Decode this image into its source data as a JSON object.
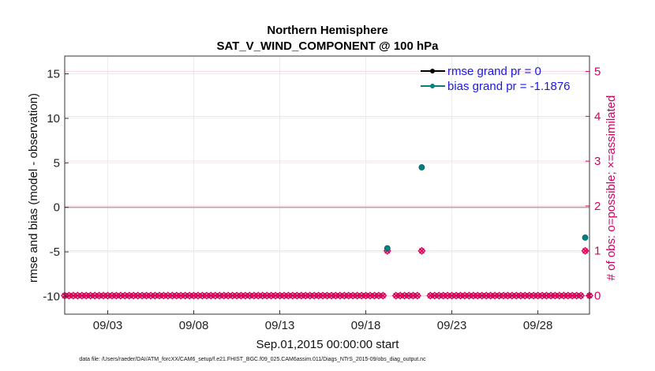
{
  "chart_data": {
    "type": "scatter",
    "title": "Northern Hemisphere",
    "subtitle": "SAT_V_WIND_COMPONENT @ 100 hPa",
    "xlabel": "Sep.01,2015 00:00:00 start",
    "ylabel": "rmse and bias (model - observation)",
    "y2label": "# of obs: o=possible; ×=assimilated",
    "xlim": [
      0.5,
      31
    ],
    "ylim": [
      -12,
      17
    ],
    "y2lim": [
      -0.4138,
      5.3448
    ],
    "x_ticks": [
      {
        "value": 3,
        "label": "09/03"
      },
      {
        "value": 8,
        "label": "09/08"
      },
      {
        "value": 13,
        "label": "09/13"
      },
      {
        "value": 18,
        "label": "09/18"
      },
      {
        "value": 23,
        "label": "09/23"
      },
      {
        "value": 28,
        "label": "09/28"
      }
    ],
    "y_ticks": [
      {
        "value": 15,
        "label": "15"
      },
      {
        "value": 10,
        "label": "10"
      },
      {
        "value": 5,
        "label": "5"
      },
      {
        "value": 0,
        "label": "0"
      },
      {
        "value": -5,
        "label": "-5"
      },
      {
        "value": -10,
        "label": "-10"
      }
    ],
    "y2_ticks": [
      {
        "value": 0,
        "label": "0"
      },
      {
        "value": 1,
        "label": "1"
      },
      {
        "value": 2,
        "label": "2"
      },
      {
        "value": 3,
        "label": "3"
      },
      {
        "value": 4,
        "label": "4"
      },
      {
        "value": 5,
        "label": "5"
      }
    ],
    "series": [
      {
        "name": "rmse grand pr = 0",
        "color": "#000000",
        "points": []
      },
      {
        "name": "bias grand pr = -1.1876",
        "color": "#008080",
        "points": [
          {
            "x": 19.25,
            "y": -4.6
          },
          {
            "x": 21.25,
            "y": 4.5
          },
          {
            "x": 30.75,
            "y": -3.4
          }
        ]
      }
    ],
    "obs_counts": {
      "color": "#e0005a",
      "x_start": 0.5,
      "x_step": 0.25,
      "count": 123,
      "nonzero": [
        {
          "x": 19.25,
          "y": 1
        },
        {
          "x": 21.25,
          "y": 1
        },
        {
          "x": 30.75,
          "y": 1
        }
      ],
      "missing": [
        19.5,
        21.5
      ]
    },
    "zero_line": 0,
    "grid": true,
    "legend_position": "top-right"
  },
  "footnote": "data file: /Users/raeder/DAI/ATM_forcXX/CAM6_setup/f.e21.FHIST_BGC.f09_025.CAM6assim.011/Diags_NTrS_2015-09/obs_diag_output.nc"
}
